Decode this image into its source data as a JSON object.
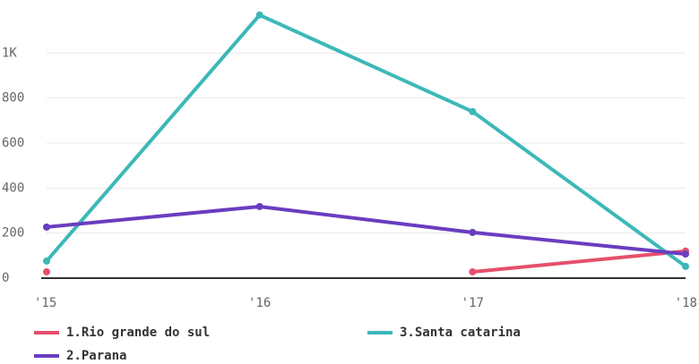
{
  "chart_data": {
    "type": "line",
    "categories": [
      "'15",
      "'16",
      "'17",
      "'18"
    ],
    "series": [
      {
        "name": "1.Rio grande do sul",
        "color": "#e5506a",
        "values": [
          28,
          null,
          28,
          120
        ]
      },
      {
        "name": "3.Santa catarina",
        "color": "#3cb8b8",
        "values": [
          76,
          1169,
          740,
          52
        ]
      },
      {
        "name": "2.Parana",
        "color": "#6a3dc0",
        "values": [
          227,
          318,
          203,
          107
        ]
      }
    ],
    "ylim": [
      0,
      1200
    ],
    "yticks": [
      0,
      200,
      400,
      600,
      800,
      {
        "value": 1000,
        "label": "1K"
      }
    ],
    "grid": true
  }
}
